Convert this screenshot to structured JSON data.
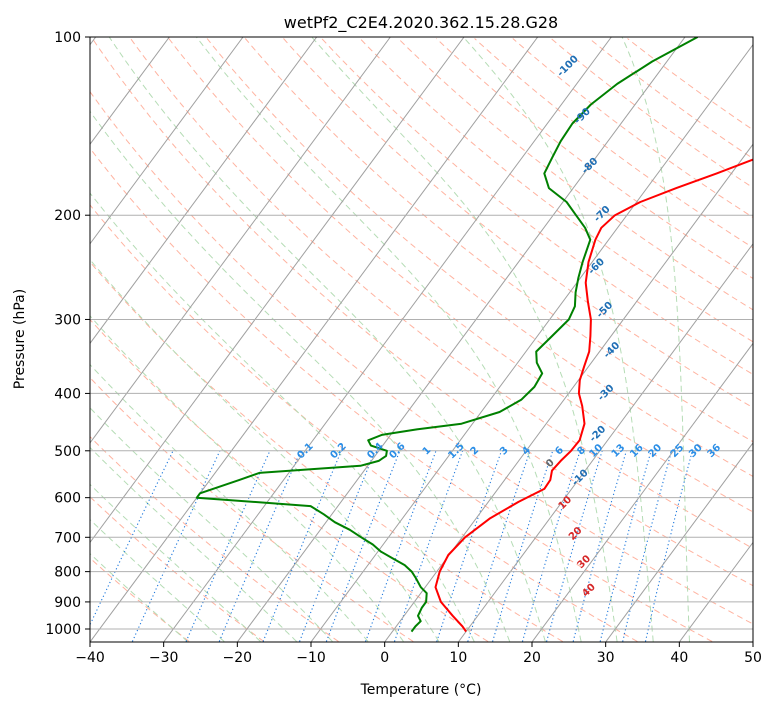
{
  "chart_data": {
    "type": "line",
    "subtype": "skew-t log-p diagram",
    "title": "wetPf2_C2E4.2020.362.15.28.G28",
    "xlabel": "Temperature (°C)",
    "ylabel": "Pressure (hPa)",
    "xlim": [
      -40,
      50
    ],
    "ylim": [
      1050,
      100
    ],
    "yscale": "log",
    "grid": true,
    "x_ticks": [
      "−40",
      "−30",
      "−20",
      "−10",
      "0",
      "10",
      "20",
      "30",
      "40",
      "50"
    ],
    "y_ticks": [
      "100",
      "200",
      "300",
      "400",
      "500",
      "600",
      "700",
      "800",
      "900",
      "1000"
    ],
    "series": [
      {
        "color": "#ff0000",
        "points": [
          [
            1010,
            10.0
          ],
          [
            990,
            9.0
          ],
          [
            950,
            6.6
          ],
          [
            900,
            3.6
          ],
          [
            850,
            1.4
          ],
          [
            800,
            0.4
          ],
          [
            750,
            -0.1
          ],
          [
            700,
            0.4
          ],
          [
            650,
            1.9
          ],
          [
            610,
            4.1
          ],
          [
            580,
            6.3
          ],
          [
            560,
            6.2
          ],
          [
            540,
            5.5
          ],
          [
            520,
            5.7
          ],
          [
            500,
            6.1
          ],
          [
            480,
            6.2
          ],
          [
            450,
            5.2
          ],
          [
            420,
            3.1
          ],
          [
            400,
            1.4
          ],
          [
            380,
            0.2
          ],
          [
            360,
            -0.6
          ],
          [
            340,
            -1.4
          ],
          [
            320,
            -2.8
          ],
          [
            300,
            -4.4
          ],
          [
            280,
            -6.6
          ],
          [
            260,
            -8.8
          ],
          [
            240,
            -10.5
          ],
          [
            220,
            -11.8
          ],
          [
            210,
            -12.2
          ],
          [
            200,
            -11.6
          ],
          [
            190,
            -9.5
          ],
          [
            180,
            -6.0
          ],
          [
            170,
            -2.0
          ],
          [
            160,
            2.0
          ],
          [
            150,
            6.0
          ],
          [
            140,
            9.4
          ],
          [
            130,
            12.5
          ],
          [
            120,
            15.3
          ],
          [
            110,
            18.1
          ],
          [
            100,
            21.9
          ]
        ]
      },
      {
        "color": "#008000",
        "points": [
          [
            1010,
            2.6
          ],
          [
            990,
            2.6
          ],
          [
            970,
            2.8
          ],
          [
            950,
            1.9
          ],
          [
            920,
            1.6
          ],
          [
            900,
            1.6
          ],
          [
            870,
            0.8
          ],
          [
            850,
            -0.6
          ],
          [
            820,
            -2.2
          ],
          [
            800,
            -3.4
          ],
          [
            780,
            -5.0
          ],
          [
            760,
            -7.3
          ],
          [
            740,
            -9.6
          ],
          [
            720,
            -11.4
          ],
          [
            700,
            -13.7
          ],
          [
            680,
            -16.0
          ],
          [
            660,
            -18.8
          ],
          [
            640,
            -21.1
          ],
          [
            620,
            -23.7
          ],
          [
            600,
            -40.0
          ],
          [
            590,
            -40.0
          ],
          [
            560,
            -36.0
          ],
          [
            545,
            -34.0
          ],
          [
            530,
            -21.0
          ],
          [
            520,
            -19.0
          ],
          [
            510,
            -18.5
          ],
          [
            500,
            -18.9
          ],
          [
            490,
            -21.6
          ],
          [
            480,
            -22.5
          ],
          [
            470,
            -21.2
          ],
          [
            460,
            -17.0
          ],
          [
            450,
            -11.5
          ],
          [
            430,
            -7.5
          ],
          [
            410,
            -5.8
          ],
          [
            390,
            -5.3
          ],
          [
            370,
            -5.6
          ],
          [
            355,
            -7.4
          ],
          [
            340,
            -8.6
          ],
          [
            320,
            -8.0
          ],
          [
            300,
            -7.4
          ],
          [
            285,
            -7.9
          ],
          [
            270,
            -9.2
          ],
          [
            255,
            -10.3
          ],
          [
            240,
            -11.3
          ],
          [
            220,
            -12.5
          ],
          [
            210,
            -14.4
          ],
          [
            200,
            -16.9
          ],
          [
            190,
            -19.5
          ],
          [
            180,
            -23.3
          ],
          [
            170,
            -25.4
          ],
          [
            160,
            -25.9
          ],
          [
            150,
            -26.4
          ],
          [
            140,
            -26.6
          ],
          [
            130,
            -26.0
          ],
          [
            120,
            -24.5
          ],
          [
            110,
            -22.0
          ],
          [
            100,
            -18.3
          ]
        ]
      }
    ],
    "reference_lines": {
      "isotherms_color": "#a0a0a0",
      "dry_adiabats_color": "#ffb3a0",
      "moist_adiabats_color": "#b5dcb5",
      "mixing_ratio_color": "#1e78dc",
      "potential_temp_labels_color": "#1f6fb5",
      "wet_bulb_labels_color": "#d62728",
      "zero_label_color": "#666666"
    },
    "annotations": {
      "theta_labels": [
        {
          "text": "-100",
          "T": -33.0,
          "p": 112
        },
        {
          "text": "-90",
          "T": -26.0,
          "p": 136
        },
        {
          "text": "-80",
          "T": -20.0,
          "p": 165
        },
        {
          "text": "-70",
          "T": -13.5,
          "p": 199
        },
        {
          "text": "-60",
          "T": -9.0,
          "p": 244
        },
        {
          "text": "-50",
          "T": -3.5,
          "p": 289
        },
        {
          "text": "-40",
          "T": 1.5,
          "p": 338
        },
        {
          "text": "-30",
          "T": 5.0,
          "p": 399
        },
        {
          "text": "-20",
          "T": 8.0,
          "p": 468
        },
        {
          "text": "-10",
          "T": 10.0,
          "p": 555
        }
      ],
      "mixing_ratio_labels": [
        {
          "text": "0.1",
          "T": -30.0,
          "p": 500
        },
        {
          "text": "0.2",
          "T": -25.5,
          "p": 500
        },
        {
          "text": "0.4",
          "T": -20.5,
          "p": 500
        },
        {
          "text": "0.6",
          "T": -17.5,
          "p": 500
        },
        {
          "text": "1",
          "T": -13.5,
          "p": 500
        },
        {
          "text": "1.5",
          "T": -9.5,
          "p": 500
        },
        {
          "text": "2",
          "T": -7.0,
          "p": 500
        },
        {
          "text": "3",
          "T": -3.0,
          "p": 500
        },
        {
          "text": "4",
          "T": 0.0,
          "p": 500
        },
        {
          "text": "6",
          "T": 4.5,
          "p": 500
        },
        {
          "text": "8",
          "T": 7.5,
          "p": 500
        },
        {
          "text": "10",
          "T": 9.5,
          "p": 500
        },
        {
          "text": "13",
          "T": 12.5,
          "p": 500
        },
        {
          "text": "16",
          "T": 15.0,
          "p": 500
        },
        {
          "text": "20",
          "T": 17.5,
          "p": 500
        },
        {
          "text": "25",
          "T": 20.5,
          "p": 500
        },
        {
          "text": "30",
          "T": 23.0,
          "p": 500
        },
        {
          "text": "36",
          "T": 25.5,
          "p": 500
        }
      ],
      "wet_bulb_labels": [
        {
          "text": "0",
          "T": 4.5,
          "p": 525,
          "color": "#666666"
        },
        {
          "text": "10",
          "T": 10.5,
          "p": 612,
          "color": "#d62728"
        },
        {
          "text": "20",
          "T": 15.0,
          "p": 690,
          "color": "#d62728"
        },
        {
          "text": "30",
          "T": 19.0,
          "p": 770,
          "color": "#d62728"
        },
        {
          "text": "40",
          "T": 22.5,
          "p": 860,
          "color": "#d62728"
        }
      ]
    }
  }
}
